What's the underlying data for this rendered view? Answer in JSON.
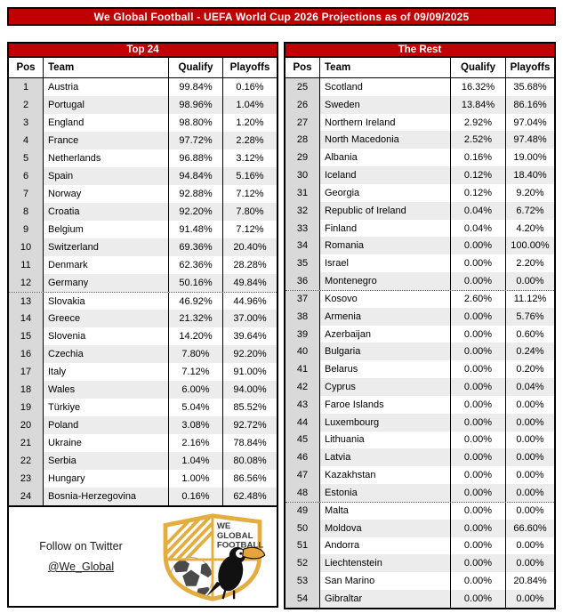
{
  "page_title": "We Global Football - UEFA World Cup 2026 Projections as of 09/09/2025",
  "colors": {
    "accent_red": "#C00000",
    "pos_column_bg": "#D9D9D9",
    "row_stripe": "#ECECEC",
    "border": "#000000",
    "logo_gold": "#E3AE3F",
    "logo_dark": "#3C3C3C"
  },
  "chart_data": [
    {
      "type": "table",
      "title": "Top 24",
      "columns": [
        "Pos",
        "Team",
        "Qualify",
        "Playoffs"
      ],
      "dotted_before_pos": [
        13
      ],
      "rows": [
        [
          "1",
          "Austria",
          "99.84%",
          "0.16%"
        ],
        [
          "2",
          "Portugal",
          "98.96%",
          "1.04%"
        ],
        [
          "3",
          "England",
          "98.80%",
          "1.20%"
        ],
        [
          "4",
          "France",
          "97.72%",
          "2.28%"
        ],
        [
          "5",
          "Netherlands",
          "96.88%",
          "3.12%"
        ],
        [
          "6",
          "Spain",
          "94.84%",
          "5.16%"
        ],
        [
          "7",
          "Norway",
          "92.88%",
          "7.12%"
        ],
        [
          "8",
          "Croatia",
          "92.20%",
          "7.80%"
        ],
        [
          "9",
          "Belgium",
          "91.48%",
          "7.12%"
        ],
        [
          "10",
          "Switzerland",
          "69.36%",
          "20.40%"
        ],
        [
          "11",
          "Denmark",
          "62.36%",
          "28.28%"
        ],
        [
          "12",
          "Germany",
          "50.16%",
          "49.84%"
        ],
        [
          "13",
          "Slovakia",
          "46.92%",
          "44.96%"
        ],
        [
          "14",
          "Greece",
          "21.32%",
          "37.00%"
        ],
        [
          "15",
          "Slovenia",
          "14.20%",
          "39.64%"
        ],
        [
          "16",
          "Czechia",
          "7.80%",
          "92.20%"
        ],
        [
          "17",
          "Italy",
          "7.12%",
          "91.00%"
        ],
        [
          "18",
          "Wales",
          "6.00%",
          "94.00%"
        ],
        [
          "19",
          "Türkiye",
          "5.04%",
          "85.52%"
        ],
        [
          "20",
          "Poland",
          "3.08%",
          "92.72%"
        ],
        [
          "21",
          "Ukraine",
          "2.16%",
          "78.84%"
        ],
        [
          "22",
          "Serbia",
          "1.04%",
          "80.08%"
        ],
        [
          "23",
          "Hungary",
          "1.00%",
          "86.56%"
        ],
        [
          "24",
          "Bosnia-Herzegovina",
          "0.16%",
          "62.48%"
        ]
      ]
    },
    {
      "type": "table",
      "title": "The Rest",
      "columns": [
        "Pos",
        "Team",
        "Qualify",
        "Playoffs"
      ],
      "dotted_before_pos": [
        37,
        49
      ],
      "rows": [
        [
          "25",
          "Scotland",
          "16.32%",
          "35.68%"
        ],
        [
          "26",
          "Sweden",
          "13.84%",
          "86.16%"
        ],
        [
          "27",
          "Northern Ireland",
          "2.92%",
          "97.04%"
        ],
        [
          "28",
          "North Macedonia",
          "2.52%",
          "97.48%"
        ],
        [
          "29",
          "Albania",
          "0.16%",
          "19.00%"
        ],
        [
          "30",
          "Iceland",
          "0.12%",
          "18.40%"
        ],
        [
          "31",
          "Georgia",
          "0.12%",
          "9.20%"
        ],
        [
          "32",
          "Republic of Ireland",
          "0.04%",
          "6.72%"
        ],
        [
          "33",
          "Finland",
          "0.04%",
          "4.20%"
        ],
        [
          "34",
          "Romania",
          "0.00%",
          "100.00%"
        ],
        [
          "35",
          "Israel",
          "0.00%",
          "2.20%"
        ],
        [
          "36",
          "Montenegro",
          "0.00%",
          "0.00%"
        ],
        [
          "37",
          "Kosovo",
          "2.60%",
          "11.12%"
        ],
        [
          "38",
          "Armenia",
          "0.00%",
          "5.76%"
        ],
        [
          "39",
          "Azerbaijan",
          "0.00%",
          "0.60%"
        ],
        [
          "40",
          "Bulgaria",
          "0.00%",
          "0.24%"
        ],
        [
          "41",
          "Belarus",
          "0.00%",
          "0.20%"
        ],
        [
          "42",
          "Cyprus",
          "0.00%",
          "0.04%"
        ],
        [
          "43",
          "Faroe Islands",
          "0.00%",
          "0.00%"
        ],
        [
          "44",
          "Luxembourg",
          "0.00%",
          "0.00%"
        ],
        [
          "45",
          "Lithuania",
          "0.00%",
          "0.00%"
        ],
        [
          "46",
          "Latvia",
          "0.00%",
          "0.00%"
        ],
        [
          "47",
          "Kazakhstan",
          "0.00%",
          "0.00%"
        ],
        [
          "48",
          "Estonia",
          "0.00%",
          "0.00%"
        ],
        [
          "49",
          "Malta",
          "0.00%",
          "0.00%"
        ],
        [
          "50",
          "Moldova",
          "0.00%",
          "66.60%"
        ],
        [
          "51",
          "Andorra",
          "0.00%",
          "0.00%"
        ],
        [
          "52",
          "Liechtenstein",
          "0.00%",
          "0.00%"
        ],
        [
          "53",
          "San Marino",
          "0.00%",
          "20.84%"
        ],
        [
          "54",
          "Gibraltar",
          "0.00%",
          "0.00%"
        ]
      ]
    }
  ],
  "footer": {
    "follow_text": "Follow on Twitter",
    "twitter_handle": "@We_Global",
    "logo_lines": [
      "WE",
      "GLOBAL",
      "FOOTBALL"
    ]
  }
}
